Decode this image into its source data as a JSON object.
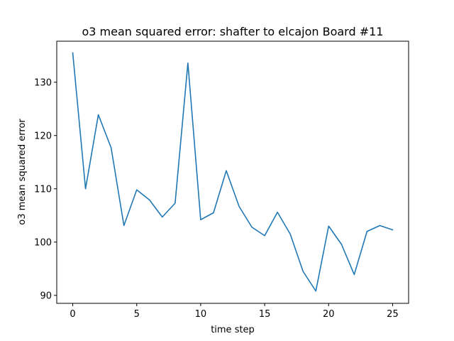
{
  "chart_data": {
    "type": "line",
    "title": "o3 mean squared error: shafter to elcajon Board #11",
    "xlabel": "time step",
    "ylabel": "o3 mean squared error",
    "xlim": [
      -1.25,
      26.25
    ],
    "ylim": [
      88.5,
      137.7
    ],
    "xticks": [
      0,
      5,
      10,
      15,
      20,
      25
    ],
    "yticks": [
      90,
      100,
      110,
      120,
      130
    ],
    "grid": false,
    "series": [
      {
        "color": "#1f77b4",
        "x": [
          0,
          1,
          2,
          3,
          4,
          5,
          6,
          7,
          8,
          9,
          10,
          11,
          12,
          13,
          14,
          15,
          16,
          17,
          18,
          19,
          20,
          21,
          22,
          23,
          24,
          25
        ],
        "y": [
          135.5,
          110.0,
          123.9,
          117.7,
          103.1,
          109.8,
          107.9,
          104.7,
          107.3,
          133.6,
          104.2,
          105.5,
          113.4,
          106.7,
          102.8,
          101.2,
          105.6,
          101.5,
          94.5,
          90.8,
          103.0,
          99.6,
          93.9,
          102.0,
          103.1,
          102.3
        ]
      }
    ]
  }
}
